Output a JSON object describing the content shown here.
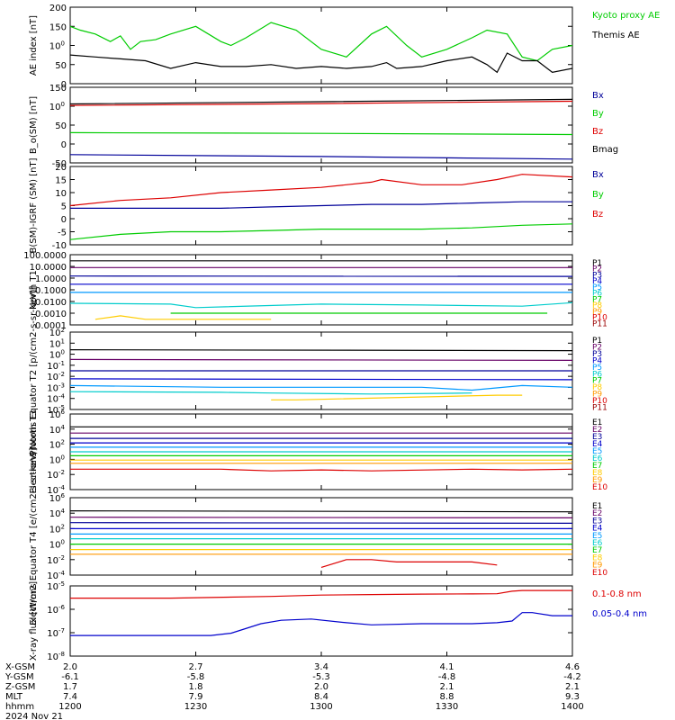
{
  "chart_data": [
    {
      "type": "line",
      "ylabel": "AE index [nT]",
      "ylim": [
        0,
        200
      ],
      "yticks": [
        "0",
        "50",
        "100",
        "150",
        "200"
      ],
      "yscale": "linear",
      "series": [
        {
          "name": "Kyoto proxy AE",
          "color": "#00cc00",
          "x": [
            0,
            0.02,
            0.05,
            0.08,
            0.1,
            0.12,
            0.14,
            0.17,
            0.2,
            0.25,
            0.3,
            0.32,
            0.35,
            0.4,
            0.45,
            0.5,
            0.55,
            0.6,
            0.63,
            0.67,
            0.7,
            0.75,
            0.8,
            0.83,
            0.87,
            0.9,
            0.93,
            0.96,
            1
          ],
          "y": [
            150,
            140,
            130,
            110,
            125,
            90,
            110,
            115,
            130,
            150,
            110,
            100,
            120,
            160,
            140,
            90,
            70,
            130,
            150,
            100,
            70,
            90,
            120,
            140,
            130,
            70,
            60,
            90,
            100
          ]
        },
        {
          "name": "Themis AE",
          "color": "#000000",
          "x": [
            0,
            0.05,
            0.1,
            0.15,
            0.2,
            0.25,
            0.3,
            0.35,
            0.4,
            0.45,
            0.5,
            0.55,
            0.6,
            0.63,
            0.65,
            0.7,
            0.75,
            0.8,
            0.83,
            0.85,
            0.87,
            0.9,
            0.93,
            0.96,
            1
          ],
          "y": [
            75,
            70,
            65,
            60,
            40,
            55,
            45,
            45,
            50,
            40,
            45,
            40,
            45,
            55,
            40,
            45,
            60,
            70,
            50,
            30,
            80,
            60,
            60,
            30,
            40
          ]
        }
      ]
    },
    {
      "type": "line",
      "ylabel": "B_o(SM) [nT]",
      "ylim": [
        -50,
        150
      ],
      "yticks": [
        "-50",
        "0",
        "50",
        "100",
        "150"
      ],
      "yscale": "linear",
      "series": [
        {
          "name": "Bx",
          "color": "#000099",
          "x": [
            0,
            0.5,
            1
          ],
          "y": [
            -28,
            -33,
            -40
          ]
        },
        {
          "name": "By",
          "color": "#00cc00",
          "x": [
            0,
            0.5,
            1
          ],
          "y": [
            30,
            28,
            25
          ]
        },
        {
          "name": "Bz",
          "color": "#dd0000",
          "x": [
            0,
            0.5,
            1
          ],
          "y": [
            102,
            107,
            113
          ]
        },
        {
          "name": "Bmag",
          "color": "#000000",
          "x": [
            0,
            0.5,
            1
          ],
          "y": [
            106,
            112,
            118
          ]
        }
      ]
    },
    {
      "type": "line",
      "ylabel": "B(SM)-IGRF (SM) [nT]",
      "ylim": [
        -10,
        20
      ],
      "yticks": [
        "-10",
        "-5",
        "0",
        "5",
        "10",
        "15",
        "20"
      ],
      "yscale": "linear",
      "series": [
        {
          "name": "Bx",
          "color": "#000099",
          "x": [
            0,
            0.1,
            0.2,
            0.3,
            0.4,
            0.5,
            0.6,
            0.7,
            0.8,
            0.9,
            1
          ],
          "y": [
            4,
            4,
            4,
            4,
            4.5,
            5,
            5.5,
            5.5,
            6,
            6.5,
            6.5
          ]
        },
        {
          "name": "By",
          "color": "#00cc00",
          "x": [
            0,
            0.1,
            0.2,
            0.3,
            0.4,
            0.5,
            0.6,
            0.7,
            0.8,
            0.9,
            1
          ],
          "y": [
            -8,
            -6,
            -5,
            -5,
            -4.5,
            -4,
            -4,
            -4,
            -3.5,
            -2.5,
            -2
          ]
        },
        {
          "name": "Bz",
          "color": "#dd0000",
          "x": [
            0,
            0.1,
            0.2,
            0.3,
            0.4,
            0.5,
            0.6,
            0.62,
            0.7,
            0.78,
            0.85,
            0.9,
            1
          ],
          "y": [
            5,
            7,
            8,
            10,
            11,
            12,
            14,
            15,
            13,
            13,
            15,
            17,
            16
          ]
        }
      ]
    },
    {
      "type": "line",
      "ylabel": "North T1",
      "ylim": [
        0.0001,
        100
      ],
      "yticks": [
        "0.0001",
        "0.0010",
        "0.0100",
        "0.1000",
        "1.0000",
        "10.0000",
        "100.0000"
      ],
      "yscale": "log",
      "series": [
        {
          "name": "P1",
          "color": "#000000",
          "x": [
            0,
            1
          ],
          "y": [
            30,
            30
          ]
        },
        {
          "name": "P2",
          "color": "#660066",
          "x": [
            0,
            1
          ],
          "y": [
            8,
            8
          ]
        },
        {
          "name": "P3",
          "color": "#000099",
          "x": [
            0,
            1
          ],
          "y": [
            1.5,
            1.4
          ]
        },
        {
          "name": "P4",
          "color": "#0000cc",
          "x": [
            0,
            1
          ],
          "y": [
            0.3,
            0.3
          ]
        },
        {
          "name": "P5",
          "color": "#0099ff",
          "x": [
            0,
            1
          ],
          "y": [
            0.06,
            0.06
          ]
        },
        {
          "name": "P6",
          "color": "#00cccc",
          "x": [
            0,
            0.2,
            0.25,
            0.5,
            0.7,
            0.9,
            1
          ],
          "y": [
            0.007,
            0.006,
            0.003,
            0.006,
            0.005,
            0.004,
            0.008
          ]
        },
        {
          "name": "P7",
          "color": "#00cc00",
          "x": [
            0.2,
            0.3,
            0.5,
            0.6,
            0.8,
            0.95
          ],
          "y": [
            0.001,
            0.001,
            0.001,
            0.001,
            0.001,
            0.001
          ]
        },
        {
          "name": "P8",
          "color": "#ffcc00",
          "x": [
            0.05,
            0.1,
            0.15,
            0.35,
            0.4
          ],
          "y": [
            0.0003,
            0.0006,
            0.0003,
            0.0003,
            0.0003
          ]
        },
        {
          "name": "P9",
          "color": "#ff9900",
          "x": [],
          "y": []
        },
        {
          "name": "P10",
          "color": "#dd0000",
          "x": [],
          "y": []
        },
        {
          "name": "P11",
          "color": "#990000",
          "x": [],
          "y": []
        }
      ]
    },
    {
      "type": "line",
      "ylabel": "Protons Equator T2 [p/(cm2-s-sr-keV)]",
      "ylim": [
        1e-05,
        1000
      ],
      "yticks": [
        "10-5",
        "10-4",
        "10-3",
        "10-2",
        "10-1",
        "10 0",
        "10 1",
        "10 2"
      ],
      "yscale": "log",
      "series": [
        {
          "name": "P1",
          "color": "#000000",
          "x": [
            0,
            1
          ],
          "y": [
            15,
            12
          ]
        },
        {
          "name": "P2",
          "color": "#660066",
          "x": [
            0,
            1
          ],
          "y": [
            1.5,
            1.2
          ]
        },
        {
          "name": "P3",
          "color": "#000099",
          "x": [
            0,
            1
          ],
          "y": [
            0.1,
            0.1
          ]
        },
        {
          "name": "P4",
          "color": "#0000cc",
          "x": [
            0,
            1
          ],
          "y": [
            0.015,
            0.012
          ]
        },
        {
          "name": "P5",
          "color": "#0099ff",
          "x": [
            0,
            0.3,
            0.5,
            0.7,
            0.8,
            0.9,
            1
          ],
          "y": [
            0.003,
            0.002,
            0.002,
            0.002,
            0.001,
            0.003,
            0.002
          ]
        },
        {
          "name": "P6",
          "color": "#00cccc",
          "x": [
            0,
            0.3,
            0.4,
            0.6,
            0.8
          ],
          "y": [
            0.0007,
            0.0006,
            0.0005,
            0.0004,
            0.0005
          ]
        },
        {
          "name": "P7",
          "color": "#00cc00",
          "x": [],
          "y": []
        },
        {
          "name": "P8",
          "color": "#ffcc00",
          "x": [
            0.4,
            0.45,
            0.85,
            0.9
          ],
          "y": [
            0.0001,
            0.0001,
            0.0003,
            0.0003
          ]
        },
        {
          "name": "P9",
          "color": "#ff9900",
          "x": [],
          "y": []
        },
        {
          "name": "P10",
          "color": "#dd0000",
          "x": [],
          "y": []
        },
        {
          "name": "P11",
          "color": "#990000",
          "x": [],
          "y": []
        }
      ]
    },
    {
      "type": "line",
      "ylabel": "Electrons North T3",
      "ylim": [
        0.0001,
        1000000
      ],
      "yticks": [
        "10-4",
        "10-2",
        "10 0",
        "10 2",
        "10 4",
        "10 6"
      ],
      "yscale": "log",
      "series": [
        {
          "name": "E1",
          "color": "#000000",
          "x": [
            0,
            1
          ],
          "y": [
            20000,
            20000
          ]
        },
        {
          "name": "E2",
          "color": "#660066",
          "x": [
            0,
            1
          ],
          "y": [
            3000,
            3000
          ]
        },
        {
          "name": "E3",
          "color": "#000099",
          "x": [
            0,
            1
          ],
          "y": [
            600,
            600
          ]
        },
        {
          "name": "E4",
          "color": "#0000cc",
          "x": [
            0,
            1
          ],
          "y": [
            150,
            150
          ]
        },
        {
          "name": "E5",
          "color": "#0099ff",
          "x": [
            0,
            1
          ],
          "y": [
            40,
            40
          ]
        },
        {
          "name": "E6",
          "color": "#00cccc",
          "x": [
            0,
            1
          ],
          "y": [
            10,
            10
          ]
        },
        {
          "name": "E7",
          "color": "#00cc00",
          "x": [
            0,
            1
          ],
          "y": [
            3,
            3
          ]
        },
        {
          "name": "E8",
          "color": "#ffcc00",
          "x": [
            0,
            1
          ],
          "y": [
            0.8,
            0.8
          ]
        },
        {
          "name": "E9",
          "color": "#ff9900",
          "x": [
            0,
            1
          ],
          "y": [
            0.3,
            0.3
          ]
        },
        {
          "name": "E10",
          "color": "#dd0000",
          "x": [
            0,
            0.3,
            0.4,
            0.5,
            0.6,
            0.8,
            0.9,
            1
          ],
          "y": [
            0.05,
            0.05,
            0.03,
            0.04,
            0.03,
            0.05,
            0.04,
            0.05
          ]
        }
      ]
    },
    {
      "type": "line",
      "ylabel": "Electrons Equator T4 [e/(cm2-s-sr-keV)]",
      "ylim": [
        0.0001,
        1000000
      ],
      "yticks": [
        "10-4",
        "10-2",
        "10 0",
        "10 2",
        "10 4",
        "10 6"
      ],
      "yscale": "log",
      "series": [
        {
          "name": "E1",
          "color": "#000000",
          "x": [
            0,
            1
          ],
          "y": [
            20000,
            15000
          ]
        },
        {
          "name": "E2",
          "color": "#660066",
          "x": [
            0,
            1
          ],
          "y": [
            3000,
            2500
          ]
        },
        {
          "name": "E3",
          "color": "#000099",
          "x": [
            0,
            1
          ],
          "y": [
            600,
            500
          ]
        },
        {
          "name": "E4",
          "color": "#0000cc",
          "x": [
            0,
            1
          ],
          "y": [
            100,
            100
          ]
        },
        {
          "name": "E5",
          "color": "#0099ff",
          "x": [
            0,
            1
          ],
          "y": [
            20,
            20
          ]
        },
        {
          "name": "E6",
          "color": "#00cccc",
          "x": [
            0,
            1
          ],
          "y": [
            5,
            5
          ]
        },
        {
          "name": "E7",
          "color": "#00cc00",
          "x": [
            0,
            1
          ],
          "y": [
            1,
            1
          ]
        },
        {
          "name": "E8",
          "color": "#ffcc00",
          "x": [
            0,
            1
          ],
          "y": [
            0.2,
            0.2
          ]
        },
        {
          "name": "E9",
          "color": "#ff9900",
          "x": [
            0,
            1
          ],
          "y": [
            0.05,
            0.05
          ]
        },
        {
          "name": "E10",
          "color": "#dd0000",
          "x": [
            0.5,
            0.55,
            0.6,
            0.65,
            0.8,
            0.85
          ],
          "y": [
            0.001,
            0.01,
            0.01,
            0.005,
            0.005,
            0.002
          ]
        }
      ]
    },
    {
      "type": "line",
      "ylabel": "X-ray flux [W/m2]",
      "ylim": [
        1e-09,
        1e-05
      ],
      "yticks": [
        "10-8",
        "10-7",
        "10-6",
        "10-5"
      ],
      "yscale": "log",
      "series": [
        {
          "name": "0.1-0.8 nm",
          "color": "#dd0000",
          "x": [
            0,
            0.2,
            0.4,
            0.5,
            0.6,
            0.7,
            0.8,
            0.85,
            0.88,
            0.9,
            0.95,
            1
          ],
          "y": [
            2e-06,
            2e-06,
            2.5e-06,
            3e-06,
            3.2e-06,
            3.4e-06,
            3.5e-06,
            3.6e-06,
            5e-06,
            5.5e-06,
            5.5e-06,
            5.5e-06
          ]
        },
        {
          "name": "0.05-0.4 nm",
          "color": "#0000cc",
          "x": [
            0,
            0.2,
            0.28,
            0.32,
            0.38,
            0.42,
            0.48,
            0.55,
            0.6,
            0.7,
            0.8,
            0.85,
            0.88,
            0.9,
            0.92,
            0.96,
            1
          ],
          "y": [
            1.5e-08,
            1.5e-08,
            1.5e-08,
            2e-08,
            7e-08,
            1.1e-07,
            1.3e-07,
            8e-08,
            6e-08,
            7e-08,
            7e-08,
            8e-08,
            1e-07,
            3e-07,
            3e-07,
            2e-07,
            2e-07
          ]
        }
      ]
    }
  ],
  "xaxis": {
    "rows": [
      {
        "label": "X-GSM",
        "values": [
          "2.0",
          "2.7",
          "3.4",
          "4.1",
          "4.6"
        ]
      },
      {
        "label": "Y-GSM",
        "values": [
          "-6.1",
          "-5.8",
          "-5.3",
          "-4.8",
          "-4.2"
        ]
      },
      {
        "label": "Z-GSM",
        "values": [
          "1.7",
          "1.8",
          "2.0",
          "2.1",
          "2.1"
        ]
      },
      {
        "label": "MLT",
        "values": [
          "7.4",
          "7.9",
          "8.4",
          "8.8",
          "9.3"
        ]
      },
      {
        "label": "hhmm",
        "values": [
          "1200",
          "1230",
          "1300",
          "1330",
          "1400"
        ]
      }
    ],
    "date": "2024 Nov 21"
  }
}
